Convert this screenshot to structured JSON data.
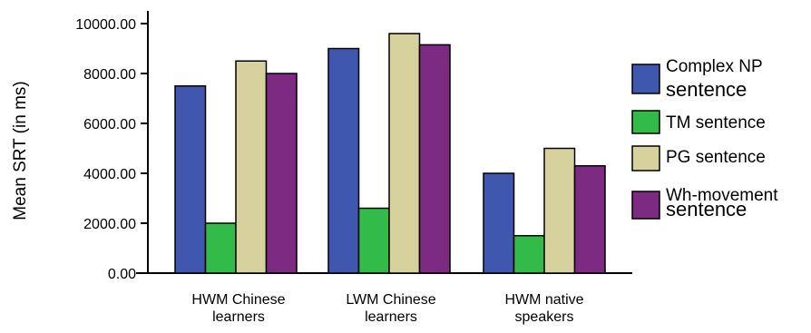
{
  "chart_data": {
    "type": "bar",
    "title": "",
    "ylabel": "Mean SRT (in ms)",
    "xlabel": "",
    "ylim": [
      0,
      10400
    ],
    "yticks": [
      "0.00",
      "2000.00",
      "4000.00",
      "6000.00",
      "8000.00",
      "10000.00"
    ],
    "ytick_values": [
      0,
      2000,
      4000,
      6000,
      8000,
      10000
    ],
    "categories": [
      [
        "HWM Chinese",
        "learners"
      ],
      [
        "LWM Chinese",
        "learners"
      ],
      [
        "HWM native",
        "speakers"
      ]
    ],
    "series": [
      {
        "name": "Complex NP sentence",
        "legend_lines": [
          "Complex NP",
          "sentence"
        ],
        "color": "#3f57ae",
        "values": [
          7500,
          9000,
          4000
        ]
      },
      {
        "name": "TM sentence",
        "legend_lines": [
          "TM sentence"
        ],
        "color": "#33bb4a",
        "values": [
          2000,
          2600,
          1500
        ]
      },
      {
        "name": "PG sentence",
        "legend_lines": [
          "PG sentence"
        ],
        "color": "#d6d19d",
        "values": [
          8500,
          9600,
          5000
        ]
      },
      {
        "name": "Wh-movement sentence",
        "legend_lines": [
          "Wh-movement",
          "sentence"
        ],
        "color": "#7d2a82",
        "values": [
          8000,
          9150,
          4300
        ]
      }
    ],
    "legend_position": "right",
    "grid": false
  }
}
